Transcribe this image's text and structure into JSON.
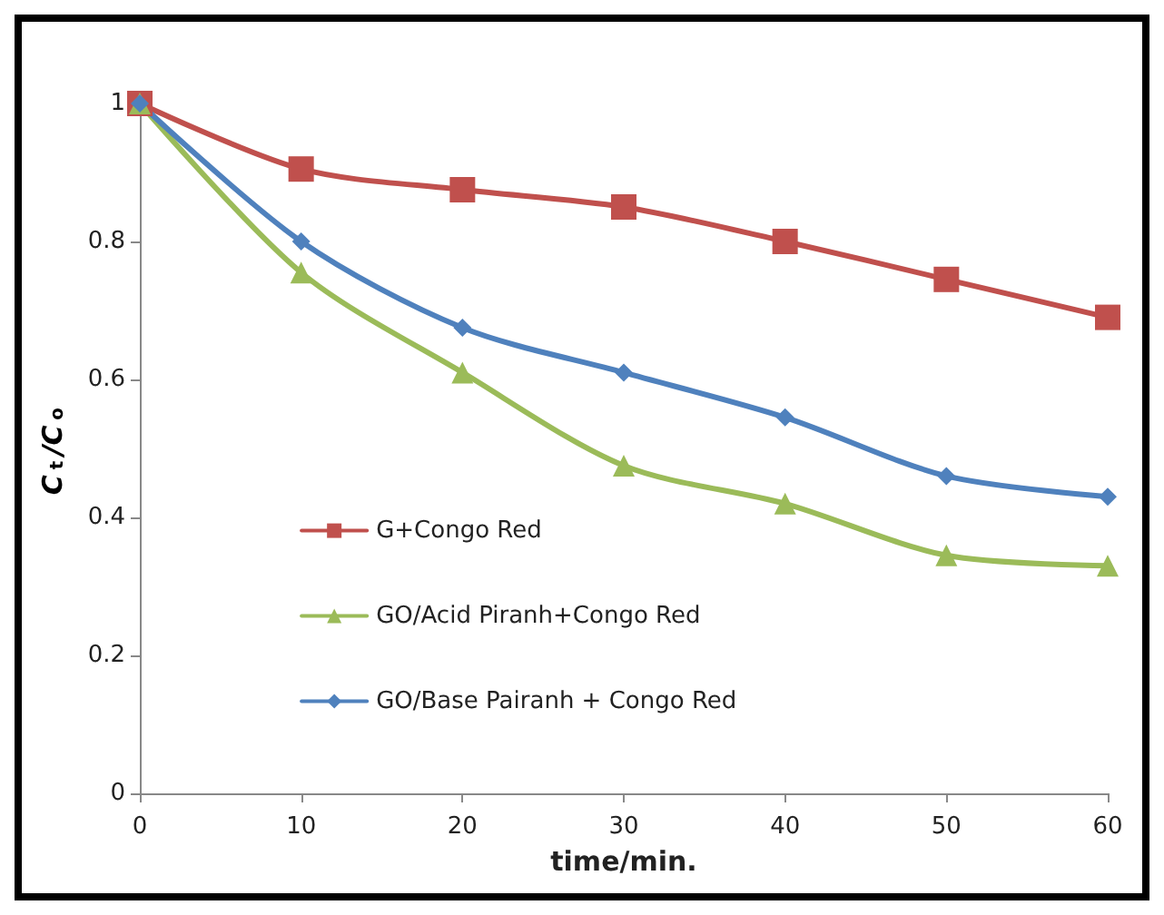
{
  "chart_data": {
    "type": "line",
    "xlabel": "time/min.",
    "ylabel": "C$_{t}$/C$_{o}$",
    "x": [
      0,
      10,
      20,
      30,
      40,
      50,
      60
    ],
    "series": [
      {
        "name": "G+Congo Red",
        "color": "#c0504d",
        "marker": "square",
        "values": [
          1.0,
          0.905,
          0.875,
          0.85,
          0.8,
          0.745,
          0.69
        ]
      },
      {
        "name": "GO/Acid Piranh+Congo Red",
        "color": "#9bbb59",
        "marker": "triangle",
        "values": [
          1.0,
          0.755,
          0.61,
          0.475,
          0.42,
          0.345,
          0.33
        ]
      },
      {
        "name": "GO/Base Pairanh + Congo Red",
        "color": "#4f81bd",
        "marker": "diamond",
        "values": [
          1.0,
          0.8,
          0.675,
          0.61,
          0.545,
          0.46,
          0.43
        ]
      }
    ],
    "xlim": [
      0,
      60
    ],
    "xticks": [
      0,
      10,
      20,
      30,
      40,
      50,
      60
    ],
    "ylim": [
      0,
      1
    ],
    "yticks": [
      0,
      0.2,
      0.4,
      0.6,
      0.8,
      1
    ],
    "grid": false,
    "legend": "left",
    "line_style": "solid"
  }
}
